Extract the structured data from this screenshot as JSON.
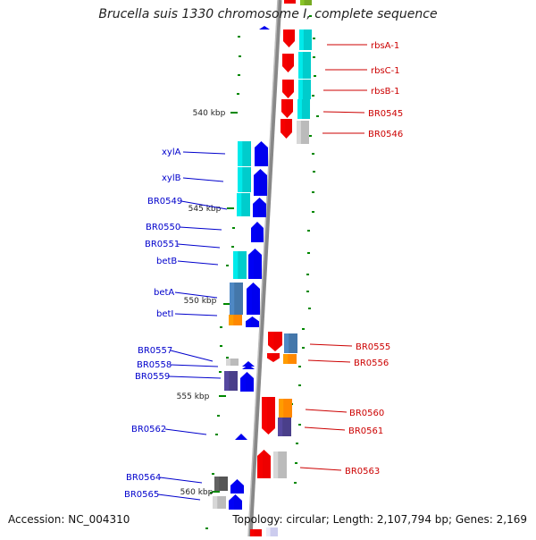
{
  "title": "Brucella suis 1330 chromosome I, complete sequence",
  "footer": {
    "accession": "Accession: NC_004310",
    "summary": "Topology: circular; Length: 2,107,794 bp; Genes: 2,169"
  },
  "colors": {
    "backbone": "#888888",
    "left_label": "#0000cc",
    "right_label": "#cc0000",
    "tick": "#008800",
    "blue": "#0000ee",
    "red": "#ee0000",
    "cyan": "#00cccc",
    "steelblue": "#4477aa",
    "orange": "#ff8800",
    "slate": "#4a3f8a",
    "gray": "#bbbbbb",
    "darkgray": "#555555",
    "green": "#77aa22"
  },
  "kbp_labels": [
    "540 kbp",
    "545 kbp",
    "550 kbp",
    "555 kbp",
    "560 kbp"
  ],
  "left_genes": [
    "xylA",
    "xylB",
    "BR0549",
    "BR0550",
    "BR0551",
    "betB",
    "betA",
    "betI",
    "BR0557",
    "BR0558",
    "BR0559",
    "BR0562",
    "BR0564",
    "BR0565"
  ],
  "right_genes": [
    "rbsA-1",
    "rbsC-1",
    "rbsB-1",
    "BR0545",
    "BR0546",
    "BR0555",
    "BR0556",
    "BR0560",
    "BR0561",
    "BR0563"
  ]
}
